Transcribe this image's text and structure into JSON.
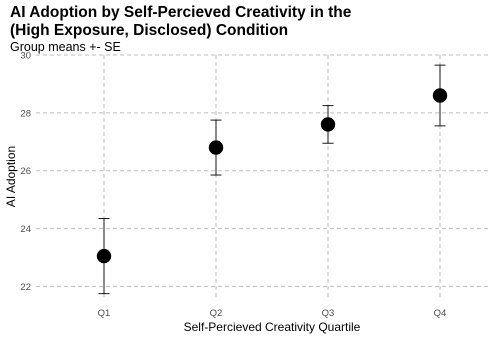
{
  "chart_data": {
    "type": "scatter",
    "title": "AI Adoption by Self-Percieved Creativity in the\n(High Exposure, Disclosed) Condition",
    "subtitle": "Group means +- SE",
    "xlabel": "Self-Percieved Creativity Quartile",
    "ylabel": "AI Adoption",
    "categories": [
      "Q1",
      "Q2",
      "Q3",
      "Q4"
    ],
    "values": [
      23.05,
      26.8,
      27.6,
      28.6
    ],
    "error_low": [
      21.75,
      25.85,
      26.95,
      27.55
    ],
    "error_high": [
      24.35,
      27.75,
      28.25,
      29.65
    ],
    "ylim": [
      21.6,
      30
    ],
    "yticks": [
      22,
      24,
      26,
      28,
      30
    ],
    "grid": true,
    "point_color": "#000000",
    "grid_color": "#bdbdbd"
  }
}
